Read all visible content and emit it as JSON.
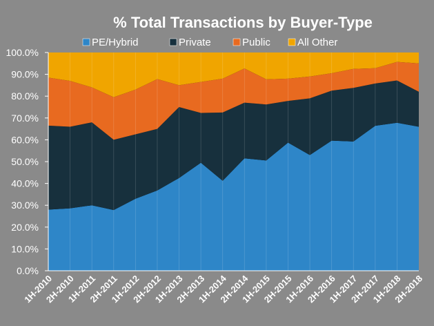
{
  "chart_data": {
    "type": "area",
    "stacked": true,
    "percent": true,
    "title": "% Total Transactions by Buyer-Type",
    "xlabel": "",
    "ylabel": "",
    "categories": [
      "1H-2010",
      "2H-2010",
      "1H-2011",
      "2H-2011",
      "1H-2012",
      "2H-2012",
      "1H-2013",
      "2H-2013",
      "1H-2014",
      "2H-2014",
      "1H-2015",
      "2H-2015",
      "1H-2016",
      "2H-2016",
      "1H-2017",
      "2H-2017",
      "1H-2018",
      "2H-2018"
    ],
    "yticks": [
      "0.0%",
      "10.0%",
      "20.0%",
      "30.0%",
      "40.0%",
      "50.0%",
      "60.0%",
      "70.0%",
      "80.0%",
      "90.0%",
      "100.0%"
    ],
    "ylim": [
      0,
      100
    ],
    "grid": false,
    "legend_position": "top",
    "series": [
      {
        "name": "PE/Hybrid",
        "color": "#2e86c8",
        "values": [
          28.0,
          28.6,
          30.0,
          27.8,
          33.0,
          36.8,
          42.5,
          49.5,
          41.2,
          51.5,
          50.5,
          58.7,
          53.0,
          59.6,
          59.2,
          66.4,
          67.8,
          66.0
        ]
      },
      {
        "name": "Private",
        "color": "#17303d",
        "values": [
          38.5,
          37.4,
          38.0,
          32.2,
          29.5,
          28.2,
          32.5,
          22.8,
          31.3,
          25.5,
          25.7,
          19.1,
          26.0,
          22.9,
          24.6,
          19.4,
          19.4,
          16.0
        ]
      },
      {
        "name": "Public",
        "color": "#e86a20",
        "values": [
          22.0,
          21.0,
          16.0,
          19.5,
          20.5,
          22.8,
          10.0,
          14.2,
          15.5,
          15.7,
          11.5,
          10.2,
          10.0,
          8.0,
          8.7,
          7.0,
          8.5,
          13.0
        ]
      },
      {
        "name": "All Other",
        "color": "#f0a500",
        "values": [
          11.5,
          13.0,
          16.0,
          20.5,
          17.0,
          12.2,
          15.0,
          13.5,
          12.0,
          7.3,
          12.3,
          12.0,
          11.0,
          9.5,
          7.5,
          7.2,
          4.3,
          5.0
        ]
      }
    ]
  },
  "colors": {
    "plot_background": "#000000",
    "frame_background": "#8a8a8a",
    "text": "#ffffff"
  }
}
